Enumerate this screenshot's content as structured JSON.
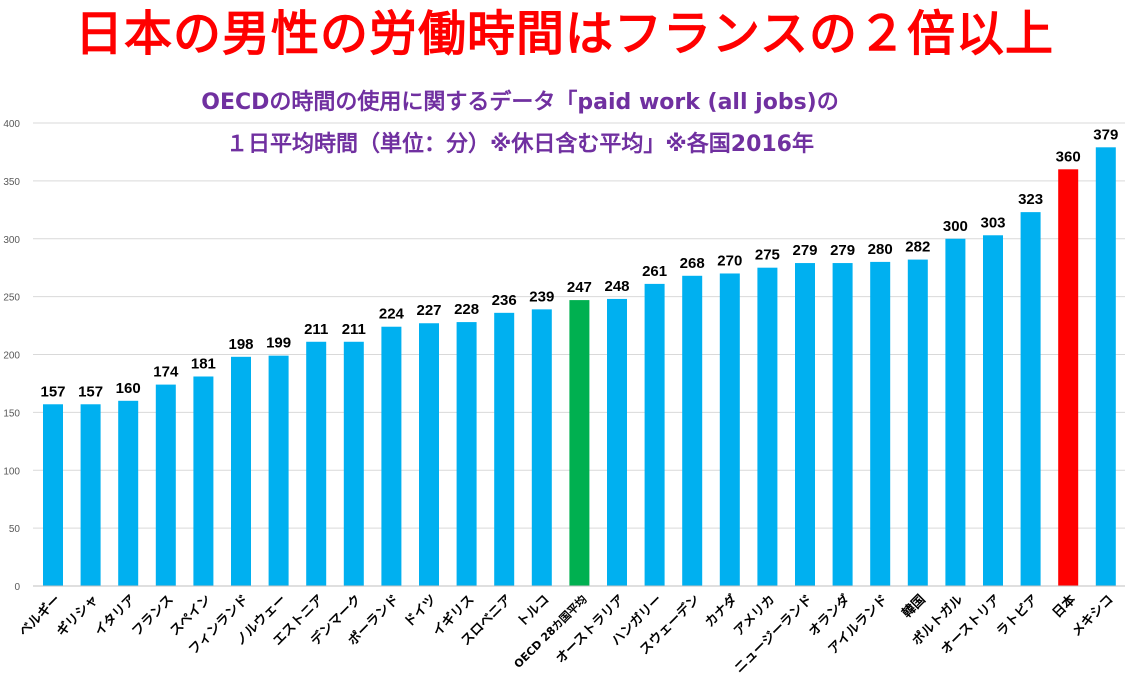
{
  "chart_data": {
    "type": "bar",
    "title": "日本の男性の労働時間はフランスの２倍以上",
    "subtitle": [
      "OECDの時間の使用に関するデータ「paid work (all jobs)の",
      "１日平均時間（単位：分）※休日含む平均」※各国2016年"
    ],
    "xlabel": "",
    "ylabel": "",
    "ylim": [
      0,
      400
    ],
    "yticks": [
      0,
      50,
      100,
      150,
      200,
      250,
      300,
      350,
      400
    ],
    "grid": true,
    "categories": [
      "ベルギー",
      "ギリシャ",
      "イタリア",
      "フランス",
      "スペイン",
      "フィンランド",
      "ノルウェー",
      "エストニア",
      "デンマーク",
      "ポーランド",
      "ドイツ",
      "イギリス",
      "スロベニア",
      "トルコ",
      "OECD 28カ国平均",
      "オーストラリア",
      "ハンガリー",
      "スウェーデン",
      "カナダ",
      "アメリカ",
      "ニュージーランド",
      "オランダ",
      "アイルランド",
      "韓国",
      "ポルトガル",
      "オーストリア",
      "ラトビア",
      "日本",
      "メキシコ"
    ],
    "values": [
      157,
      157,
      160,
      174,
      181,
      198,
      199,
      211,
      211,
      224,
      227,
      228,
      236,
      239,
      247,
      248,
      261,
      268,
      270,
      275,
      279,
      279,
      280,
      282,
      300,
      303,
      323,
      360,
      379
    ],
    "colors": {
      "default": "#00b0f0",
      "OECD 28カ国平均": "#00b050",
      "日本": "#ff0000"
    },
    "title_color": "#ff0000",
    "subtitle_color": "#7030a0"
  }
}
